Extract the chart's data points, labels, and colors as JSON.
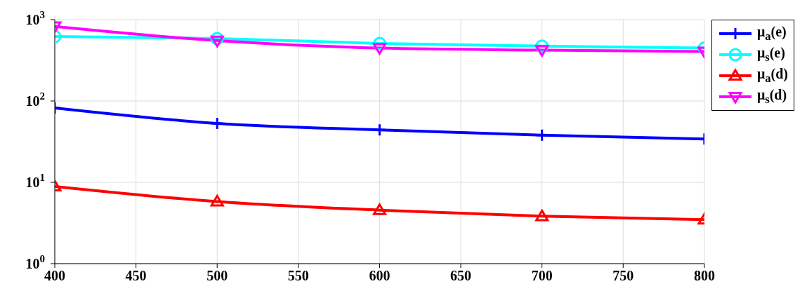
{
  "chart_data": {
    "type": "line",
    "x": [
      400,
      500,
      600,
      700,
      800
    ],
    "xlim": [
      400,
      800
    ],
    "xticks": [
      400,
      450,
      500,
      550,
      600,
      650,
      700,
      750,
      800
    ],
    "ylim": [
      1,
      1000
    ],
    "log": true,
    "yticks": [
      {
        "value": 1,
        "label": "10$^{0}$"
      },
      {
        "value": 10,
        "label": "10$^{1}$"
      },
      {
        "value": 100,
        "label": "10$^{2}$"
      },
      {
        "value": 1000,
        "label": "10$^{3}$"
      }
    ],
    "grid": true,
    "legend": "right",
    "line_style": "solid",
    "series": [
      {
        "name": "μ$_{a}$(e)",
        "color": "#0000ff",
        "marker": "cross",
        "values": [
          82,
          53,
          44,
          38,
          34
        ]
      },
      {
        "name": "μ$_{s}$(e)",
        "color": "#00ffff",
        "marker": "circle",
        "values": [
          620,
          585,
          510,
          473,
          447
        ]
      },
      {
        "name": "μ$_{a}$(d)",
        "color": "#ff0000",
        "marker": "triangle",
        "values": [
          8.9,
          5.8,
          4.55,
          3.83,
          3.48
        ]
      },
      {
        "name": "μ$_{s}$(d)",
        "color": "#ff00ff",
        "marker": "triangle-down",
        "values": [
          826,
          552,
          447,
          422,
          405
        ]
      }
    ]
  }
}
